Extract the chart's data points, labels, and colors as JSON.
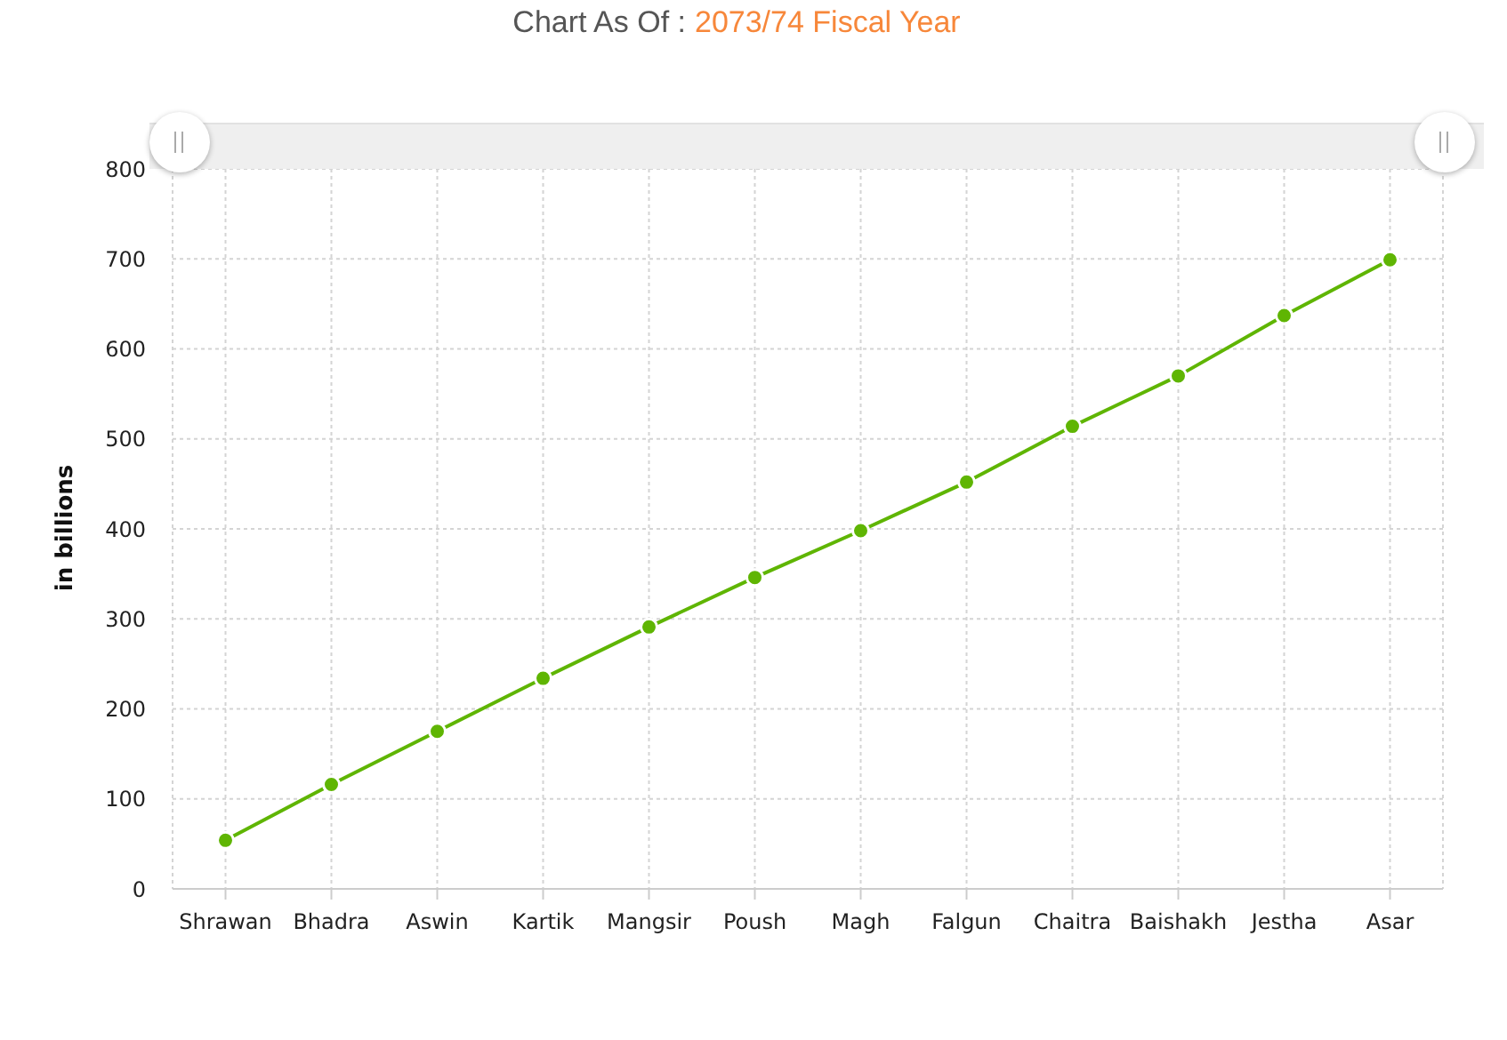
{
  "chart_data": {
    "type": "line",
    "title": "Chart As Of :",
    "subtitle": "2073/74 Fiscal Year",
    "ylabel": "in billions",
    "categories": [
      "Shrawan",
      "Bhadra",
      "Aswin",
      "Kartik",
      "Mangsir",
      "Poush",
      "Magh",
      "Falgun",
      "Chaitra",
      "Baishakh",
      "Jestha",
      "Asar"
    ],
    "series": [
      {
        "color": "#5fb503",
        "values": [
          54,
          116,
          175,
          234,
          291,
          346,
          398,
          452,
          514,
          570,
          637,
          699
        ]
      }
    ],
    "ylim": [
      0,
      800
    ],
    "yticks": [
      0,
      100,
      200,
      300,
      400,
      500,
      600,
      700,
      800
    ],
    "grid": true,
    "marker": "circle",
    "line_style": "solid"
  }
}
